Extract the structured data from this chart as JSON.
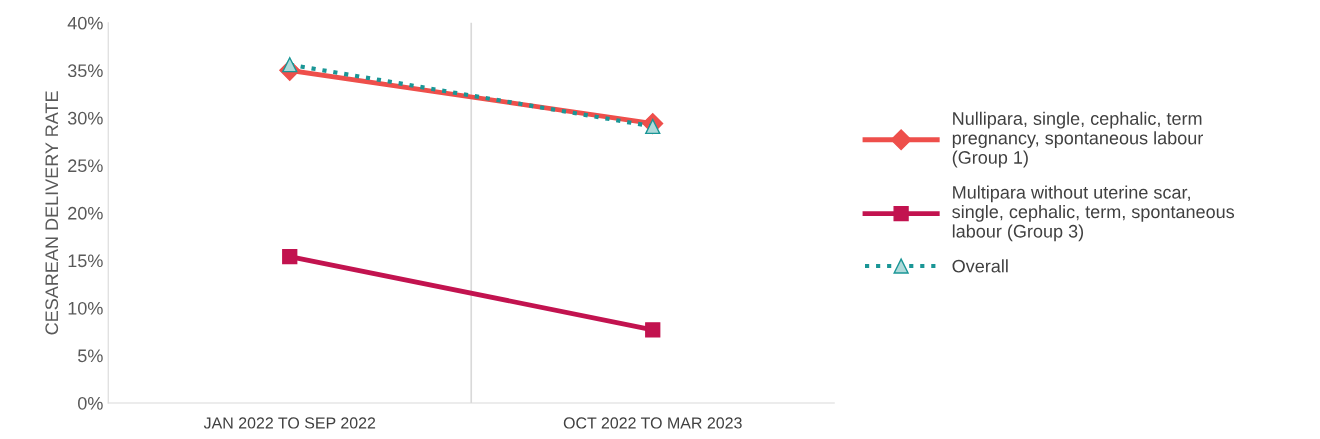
{
  "chart_data": {
    "type": "line",
    "ylabel": "CESAREAN DELIVERY RATE",
    "categories": [
      "JAN 2022 TO SEP 2022",
      "OCT 2022 TO MAR 2023"
    ],
    "series": [
      {
        "name": "Nullipara, single, cephalic, term pregnancy, spontaneous labour (Group 1)",
        "color": "#ee4f4b",
        "values": [
          35.0,
          29.4
        ],
        "marker": "diamond",
        "line_style": "solid"
      },
      {
        "name": "Multipara without uterine scar, single, cephalic, term, spontaneous labour (Group 3)",
        "color": "#c2134f",
        "values": [
          15.4,
          7.7
        ],
        "marker": "square",
        "line_style": "solid"
      },
      {
        "name": "Overall",
        "color": "#1a9696",
        "values": [
          35.6,
          29.1
        ],
        "marker": "triangle",
        "line_style": "dotted"
      }
    ],
    "ylim": [
      0,
      40
    ],
    "yticks": [
      {
        "value": 0,
        "label": "0%"
      },
      {
        "value": 5,
        "label": "5%"
      },
      {
        "value": 10,
        "label": "10%"
      },
      {
        "value": 15,
        "label": "15%"
      },
      {
        "value": 20,
        "label": "20%"
      },
      {
        "value": 25,
        "label": "25%"
      },
      {
        "value": 30,
        "label": "30%"
      },
      {
        "value": 35,
        "label": "35%"
      },
      {
        "value": 40,
        "label": "40%"
      }
    ],
    "grid": "x",
    "legend": "right"
  }
}
